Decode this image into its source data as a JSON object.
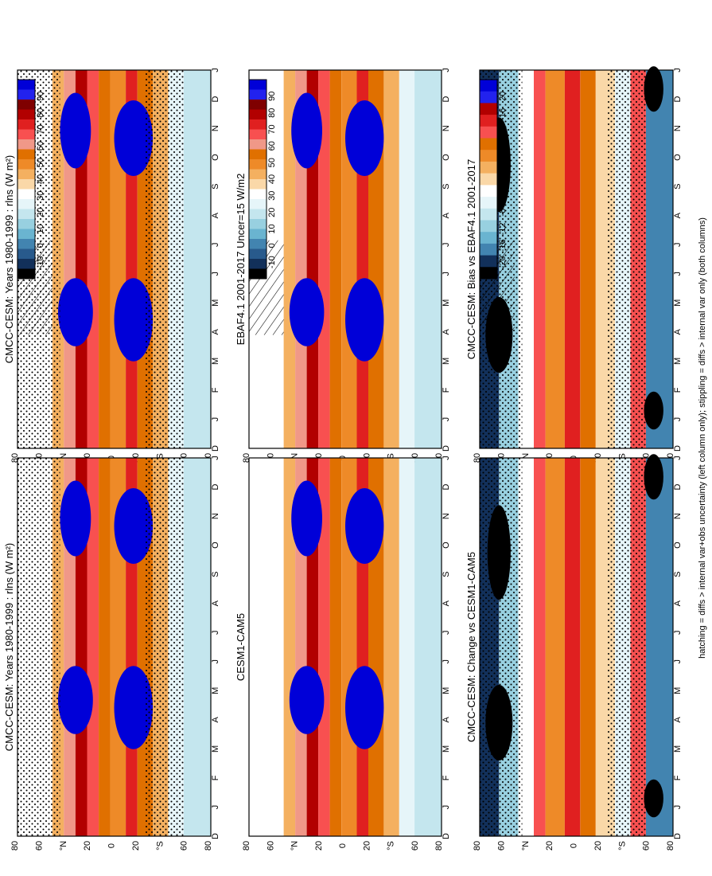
{
  "figure": {
    "footnote": "hatching = diffs > internal var+obs uncertainty (left column only); stippling = diffs > internal var only (both columns)"
  },
  "colors": {
    "abs_scale": [
      "#0000d8",
      "#2222ee",
      "#7f0000",
      "#b20000",
      "#e02020",
      "#f85050",
      "#f09888",
      "#e07000",
      "#ee8a28",
      "#f4b060",
      "#fad8a8",
      "#ffffff",
      "#e6f5f9",
      "#c4e6ee",
      "#98d0e0",
      "#6ab4d0",
      "#4284b0",
      "#285a8c",
      "#12305a",
      "#000000"
    ],
    "diff_scale": [
      "#0000d8",
      "#2222ee",
      "#b20000",
      "#e02020",
      "#f85050",
      "#e07000",
      "#ee8a28",
      "#f4b060",
      "#fad8a8",
      "#ffffff",
      "#e6f5f9",
      "#c4e6ee",
      "#98d0e0",
      "#6ab4d0",
      "#4284b0",
      "#12305a",
      "#000000"
    ]
  },
  "chart_data": [
    {
      "type": "heatmap",
      "panel": "top-left",
      "title": "CMCC-CESM: Years 1980-1999 : rlns (W m²)",
      "months": [
        "D",
        "J",
        "F",
        "M",
        "A",
        "M",
        "J",
        "J",
        "A",
        "S",
        "O",
        "N",
        "D",
        "J"
      ],
      "lat_ticks": [
        "80",
        "60",
        "°N",
        "20",
        "0",
        "20",
        "°S",
        "60",
        "80"
      ],
      "colorbar_ticks": [
        "90",
        "80",
        "70",
        "60",
        "50",
        "40",
        "30",
        "20",
        "10",
        "0",
        "-10"
      ],
      "overlay": "hatching+stippling"
    },
    {
      "type": "heatmap",
      "panel": "top-right",
      "title": "CMCC-CESM: Years 1980-1999 : rlns (W m²)",
      "months": [
        "D",
        "J",
        "F",
        "M",
        "A",
        "M",
        "J",
        "J",
        "A",
        "S",
        "O",
        "N",
        "D",
        "J"
      ],
      "lat_ticks": [
        "80",
        "60",
        "°N",
        "20",
        "0",
        "20",
        "°S",
        "60",
        "80"
      ],
      "colorbar_ticks": [
        "90",
        "80",
        "70",
        "60",
        "50",
        "40",
        "30",
        "20",
        "10",
        "0",
        "-10"
      ],
      "overlay": "stippling"
    },
    {
      "type": "heatmap",
      "panel": "middle-left",
      "title": "EBAF4.1 2001-2017 Uncer=15 W/m2",
      "months": [
        "D",
        "J",
        "F",
        "M",
        "A",
        "M",
        "J",
        "J",
        "A",
        "S",
        "O",
        "N",
        "D",
        "J"
      ],
      "lat_ticks": [
        "80",
        "60",
        "°N",
        "20",
        "0",
        "20",
        "°S",
        "60",
        "80"
      ],
      "colorbar_ticks": [
        "90",
        "80",
        "70",
        "60",
        "50",
        "40",
        "30",
        "20",
        "10",
        "0",
        "-10"
      ],
      "overlay": "hatching"
    },
    {
      "type": "heatmap",
      "panel": "middle-right",
      "title": "CESM1-CAM5",
      "months": [
        "D",
        "J",
        "F",
        "M",
        "A",
        "M",
        "J",
        "J",
        "A",
        "S",
        "O",
        "N",
        "D",
        "J"
      ],
      "lat_ticks": [
        "80",
        "60",
        "°N",
        "20",
        "0",
        "20",
        "°S",
        "60",
        "80"
      ],
      "colorbar_ticks": [
        "90",
        "80",
        "70",
        "60",
        "50",
        "40",
        "30",
        "20",
        "10",
        "0",
        "-10"
      ],
      "overlay": "none"
    },
    {
      "type": "heatmap",
      "panel": "bottom-left",
      "title": "CMCC-CESM: Bias vs EBAF4.1 2001-2017",
      "months": [
        "D",
        "J",
        "F",
        "M",
        "A",
        "M",
        "J",
        "J",
        "A",
        "S",
        "O",
        "N",
        "D",
        "J"
      ],
      "lat_ticks": [
        "80",
        "60",
        "°N",
        "20",
        "0",
        "20",
        "°S",
        "60",
        "80"
      ],
      "colorbar_ticks": [
        "20",
        "16",
        "12",
        "8",
        "4",
        "0",
        "-4",
        "-8",
        "-12",
        "-16",
        "-20"
      ],
      "overlay": "hatching+stippling"
    },
    {
      "type": "heatmap",
      "panel": "bottom-right",
      "title": "CMCC-CESM: Change vs CESM1-CAM5",
      "months": [
        "D",
        "J",
        "F",
        "M",
        "A",
        "M",
        "J",
        "J",
        "A",
        "S",
        "O",
        "N",
        "D",
        "J"
      ],
      "lat_ticks": [
        "80",
        "60",
        "°N",
        "20",
        "0",
        "20",
        "°S",
        "60",
        "80"
      ],
      "colorbar_ticks": [
        "20",
        "16",
        "12",
        "8",
        "4",
        "0",
        "-4",
        "-8",
        "-12",
        "-16",
        "-20"
      ],
      "overlay": "stippling"
    }
  ]
}
